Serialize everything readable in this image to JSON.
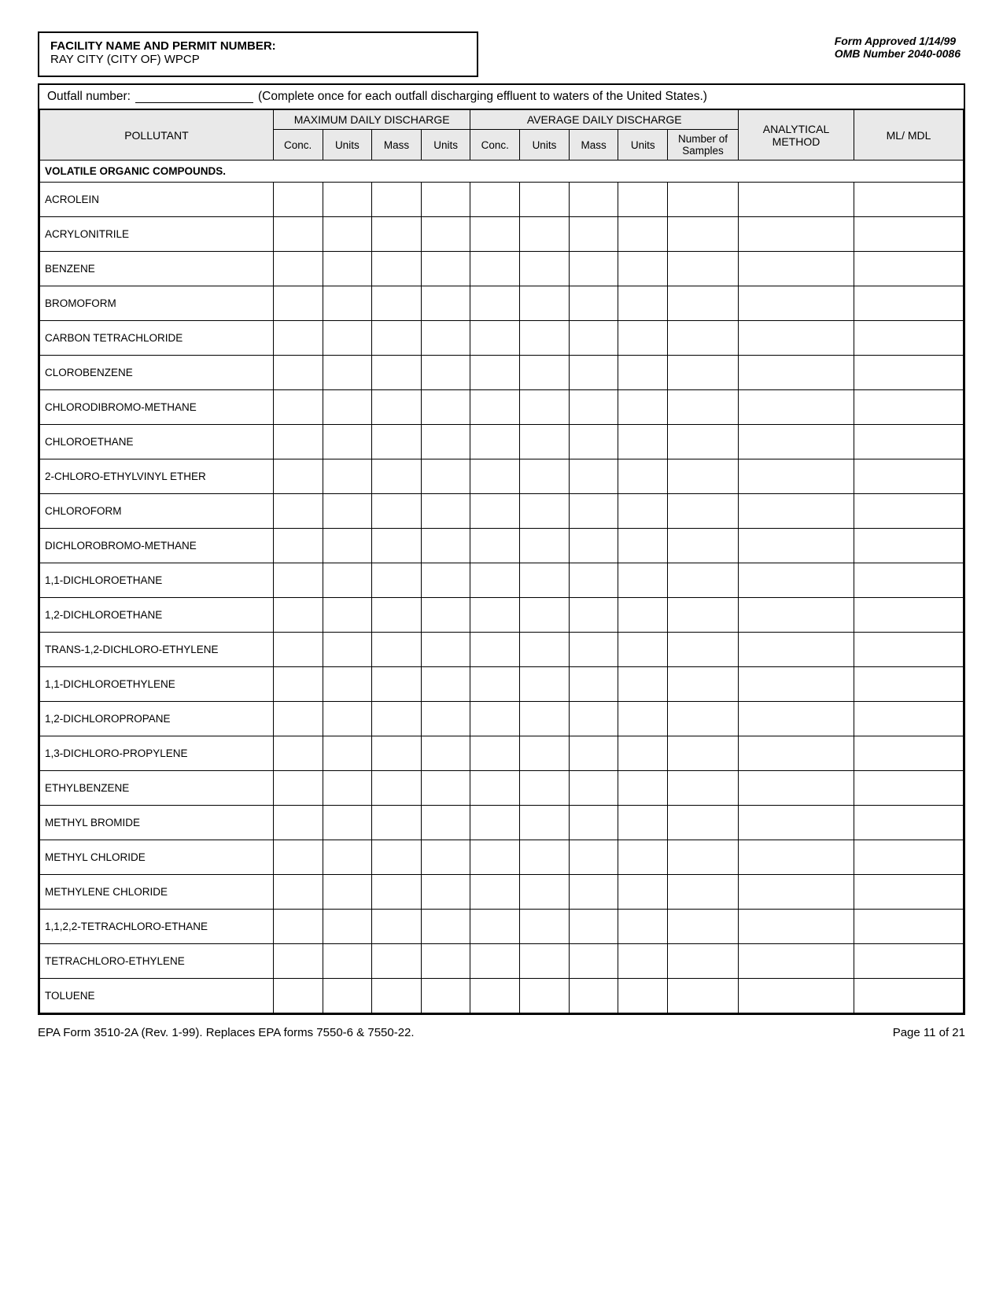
{
  "header": {
    "facility_label": "FACILITY NAME AND PERMIT NUMBER:",
    "facility_value": "RAY CITY (CITY OF) WPCP",
    "form_approved_line1": "Form Approved 1/14/99",
    "form_approved_line2": "OMB Number  2040-0086"
  },
  "outfall": {
    "label_prefix": "Outfall number:",
    "label_suffix": "(Complete once for each outfall discharging effluent to waters of the United States.)"
  },
  "table": {
    "columns": {
      "pollutant": "POLLUTANT",
      "max_daily": "MAXIMUM DAILY DISCHARGE",
      "avg_daily": "AVERAGE DAILY DISCHARGE",
      "conc": "Conc.",
      "units": "Units",
      "mass": "Mass",
      "num_samples": "Number of Samples",
      "method": "ANALYTICAL METHOD",
      "mlmdl": "ML/ MDL"
    },
    "section_header": "VOLATILE ORGANIC COMPOUNDS.",
    "pollutants": [
      "ACROLEIN",
      "ACRYLONITRILE",
      "BENZENE",
      "BROMOFORM",
      "CARBON TETRACHLORIDE",
      "CLOROBENZENE",
      "CHLORODIBROMO-METHANE",
      "CHLOROETHANE",
      "2-CHLORO-ETHYLVINYL ETHER",
      "CHLOROFORM",
      "DICHLOROBROMO-METHANE",
      "1,1-DICHLOROETHANE",
      "1,2-DICHLOROETHANE",
      "TRANS-1,2-DICHLORO-ETHYLENE",
      "1,1-DICHLOROETHYLENE",
      "1,2-DICHLOROPROPANE",
      "1,3-DICHLORO-PROPYLENE",
      "ETHYLBENZENE",
      "METHYL BROMIDE",
      "METHYL CHLORIDE",
      "METHYLENE CHLORIDE",
      "1,1,2,2-TETRACHLORO-ETHANE",
      "TETRACHLORO-ETHYLENE",
      "TOLUENE"
    ]
  },
  "footer": {
    "left": "EPA Form 3510-2A (Rev. 1-99).  Replaces EPA forms 7550-6 & 7550-22.",
    "right": "Page 11 of 21"
  },
  "style": {
    "header_bg": "#e9e9e9",
    "border_color": "#000000",
    "page_bg": "#ffffff",
    "font_family": "Arial, Helvetica, sans-serif"
  }
}
